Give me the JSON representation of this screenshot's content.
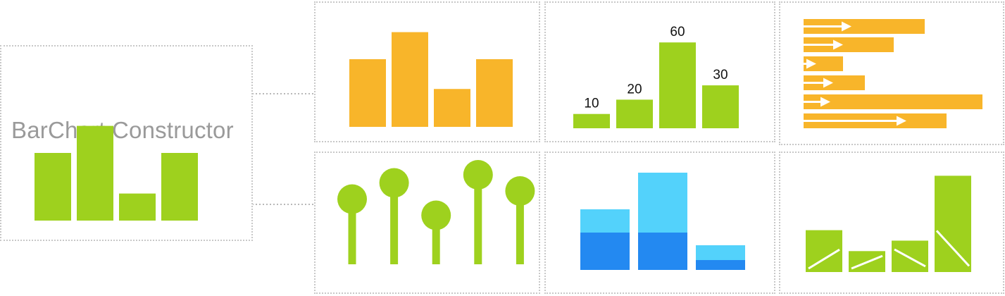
{
  "title": "BarChart Constructor",
  "colors": {
    "green": "#9ed11e",
    "orange": "#f8b52a",
    "light_blue": "#53d2fb",
    "dark_blue": "#2389f1",
    "connector": "#b8b8b8",
    "panel_border": "#c8c8c8"
  },
  "chart_data": [
    {
      "type": "bar",
      "name": "main",
      "values": [
        5,
        7,
        2,
        5
      ]
    },
    {
      "type": "bar",
      "name": "orange_variant",
      "values": [
        5,
        7,
        2.8,
        5
      ]
    },
    {
      "type": "bar",
      "name": "labeled_variant",
      "values": [
        10,
        20,
        60,
        30
      ],
      "labels": [
        "10",
        "20",
        "60",
        "30"
      ]
    },
    {
      "type": "bar",
      "name": "horizontal_arrows_variant",
      "orientation": "horizontal",
      "values": [
        172,
        128,
        56,
        87,
        254,
        203
      ],
      "arrow_values": [
        66,
        54,
        16,
        40,
        36,
        144
      ]
    },
    {
      "type": "bar",
      "name": "lollipop_variant",
      "style": "lollipop",
      "values": [
        5,
        7,
        3,
        8,
        6
      ]
    },
    {
      "type": "bar",
      "name": "stacked_variant",
      "stacked": true,
      "series": [
        {
          "values": [
            53,
            53,
            14
          ]
        },
        {
          "values": [
            33,
            85,
            21
          ]
        }
      ]
    },
    {
      "type": "bar",
      "name": "slope_variant",
      "values": [
        2,
        1,
        1.5,
        4.6
      ],
      "slopes": [
        "up",
        "up",
        "down",
        "down"
      ]
    }
  ]
}
